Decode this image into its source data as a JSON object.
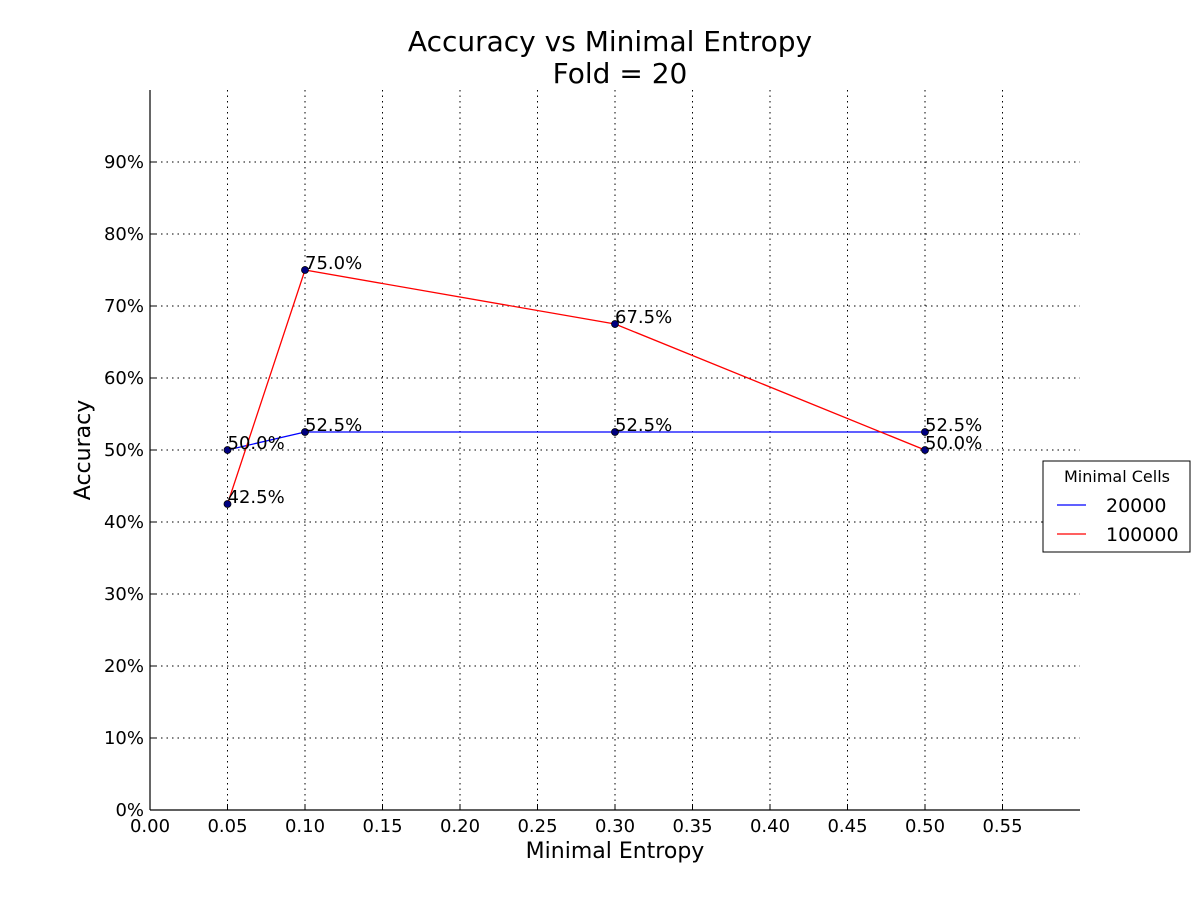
{
  "chart_data": {
    "type": "line",
    "title": "Accuracy vs Minimal Entropy",
    "subtitle": "Fold = 20",
    "xlabel": "Minimal Entropy",
    "ylabel": "Accuracy",
    "xlim": [
      0.0,
      0.6
    ],
    "ylim": [
      0,
      100
    ],
    "x_ticks": [
      0.0,
      0.05,
      0.1,
      0.15,
      0.2,
      0.25,
      0.3,
      0.35,
      0.4,
      0.45,
      0.5,
      0.55
    ],
    "x_tick_labels": [
      "0.00",
      "0.05",
      "0.10",
      "0.15",
      "0.20",
      "0.25",
      "0.30",
      "0.35",
      "0.40",
      "0.45",
      "0.50",
      "0.55"
    ],
    "y_ticks": [
      0,
      10,
      20,
      30,
      40,
      50,
      60,
      70,
      80,
      90
    ],
    "y_tick_labels": [
      "0%",
      "10%",
      "20%",
      "30%",
      "40%",
      "50%",
      "60%",
      "70%",
      "80%",
      "90%"
    ],
    "grid": true,
    "legend": {
      "title": "Minimal Cells",
      "placement": "right"
    },
    "series": [
      {
        "name": "20000",
        "color": "#0000ff",
        "x": [
          0.05,
          0.1,
          0.3,
          0.5
        ],
        "values": [
          50.0,
          52.5,
          52.5,
          52.5
        ],
        "labels": [
          "50.0%",
          "52.5%",
          "52.5%",
          "52.5%"
        ]
      },
      {
        "name": "100000",
        "color": "#ff0000",
        "x": [
          0.05,
          0.1,
          0.3,
          0.5
        ],
        "values": [
          42.5,
          75.0,
          67.5,
          50.0
        ],
        "labels": [
          "42.5%",
          "75.0%",
          "67.5%",
          "50.0%"
        ]
      }
    ],
    "marker_color": "#000080"
  }
}
